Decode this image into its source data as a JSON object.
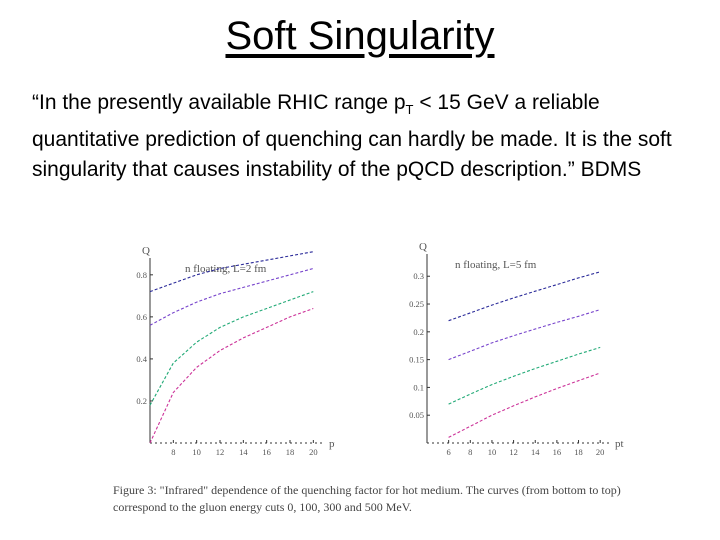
{
  "slide": {
    "title": "Soft Singularity",
    "quote_part1": "“In the presently available RHIC range p",
    "quote_sub": "T",
    "quote_part2": " < 15 GeV a reliable quantitative prediction of quenching can hardly be made.  It is the soft singularity that causes instability of the pQCD description.”  BDMS"
  },
  "caption": "Figure 3:  \"Infrared\" dependence of the quenching factor for hot medium.  The curves (from bottom to top) correspond to the gluon energy cuts 0, 100, 300 and 500 MeV.",
  "chart_data": [
    {
      "type": "line",
      "title": "n floating, L=2 fm",
      "ylabel": "Q",
      "xlabel": "pt",
      "xlim": [
        6,
        21
      ],
      "ylim": [
        0,
        0.88
      ],
      "xticks": [
        8,
        10,
        12,
        14,
        16,
        18,
        20
      ],
      "xtick_labels": [
        "8",
        "10",
        "12",
        "14",
        "16",
        "18",
        "20"
      ],
      "yticks": [
        0.2,
        0.4,
        0.6,
        0.8
      ],
      "ytick_labels": [
        "0.2",
        "0.4",
        "0.6",
        "0.8"
      ],
      "x": [
        6,
        8,
        10,
        12,
        14,
        16,
        18,
        20
      ],
      "series": [
        {
          "color": "#cc3399",
          "values": [
            0.0,
            0.24,
            0.36,
            0.44,
            0.5,
            0.55,
            0.6,
            0.64
          ]
        },
        {
          "color": "#22aa77",
          "values": [
            0.18,
            0.38,
            0.48,
            0.55,
            0.6,
            0.64,
            0.68,
            0.72
          ]
        },
        {
          "color": "#7744cc",
          "values": [
            0.56,
            0.62,
            0.67,
            0.71,
            0.74,
            0.77,
            0.8,
            0.83
          ]
        },
        {
          "color": "#2a2a99",
          "values": [
            0.72,
            0.76,
            0.8,
            0.83,
            0.85,
            0.87,
            0.89,
            0.91
          ]
        }
      ]
    },
    {
      "type": "line",
      "title": "n floating, L=5 fm",
      "ylabel": "Q",
      "xlabel": "pt",
      "xlim": [
        4,
        21
      ],
      "ylim": [
        0,
        0.34
      ],
      "xticks": [
        6,
        8,
        10,
        12,
        14,
        16,
        18,
        20
      ],
      "xtick_labels": [
        "6",
        "8",
        "10",
        "12",
        "14",
        "16",
        "18",
        "20"
      ],
      "yticks": [
        0.05,
        0.1,
        0.15,
        0.2,
        0.25,
        0.3
      ],
      "ytick_labels": [
        "0.05",
        "0.1",
        "0.15",
        "0.2",
        "0.25",
        "0.3"
      ],
      "x": [
        6,
        8,
        10,
        12,
        14,
        16,
        18,
        20
      ],
      "series": [
        {
          "color": "#cc3399",
          "values": [
            0.01,
            0.03,
            0.05,
            0.067,
            0.083,
            0.098,
            0.112,
            0.126
          ]
        },
        {
          "color": "#22aa77",
          "values": [
            0.07,
            0.088,
            0.105,
            0.12,
            0.134,
            0.147,
            0.16,
            0.172
          ]
        },
        {
          "color": "#7744cc",
          "values": [
            0.15,
            0.165,
            0.18,
            0.193,
            0.205,
            0.217,
            0.228,
            0.24
          ]
        },
        {
          "color": "#2a2a99",
          "values": [
            0.22,
            0.234,
            0.248,
            0.261,
            0.273,
            0.285,
            0.297,
            0.308
          ]
        }
      ]
    }
  ]
}
